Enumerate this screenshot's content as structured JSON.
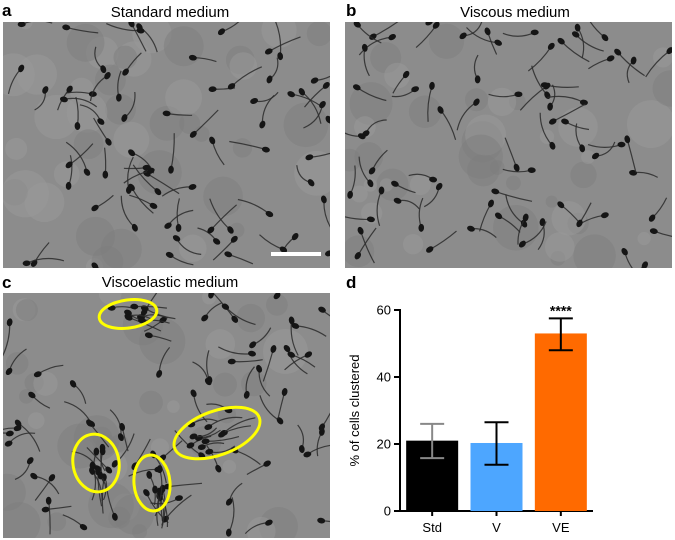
{
  "panels": {
    "a": {
      "letter": "a",
      "title": "Standard medium"
    },
    "b": {
      "letter": "b",
      "title": "Viscous medium"
    },
    "c": {
      "letter": "c",
      "title": "Viscoelastic medium"
    },
    "d": {
      "letter": "d"
    }
  },
  "colors": {
    "bar_std": "#000000",
    "bar_v": "#4da6ff",
    "bar_ve": "#ff6a00",
    "cluster_ring": "#ffff00",
    "micro_bg": "#8c8c8c",
    "cell": "#2a2a2a",
    "scale_bar": "#ffffff"
  },
  "chart_data": {
    "type": "bar",
    "categories": [
      "Std",
      "V",
      "VE"
    ],
    "values": [
      21,
      20.3,
      53
    ],
    "error": [
      {
        "low": 15.8,
        "high": 26
      },
      {
        "low": 13.8,
        "high": 26.5
      },
      {
        "low": 48,
        "high": 57.5
      }
    ],
    "significance": [
      "",
      "",
      "****"
    ],
    "xlabel": "",
    "ylabel": "% of cells  clustered",
    "ylim": [
      0,
      60
    ],
    "yticks": [
      "0",
      "20",
      "40",
      "60"
    ],
    "grid": false,
    "legend": "none"
  }
}
